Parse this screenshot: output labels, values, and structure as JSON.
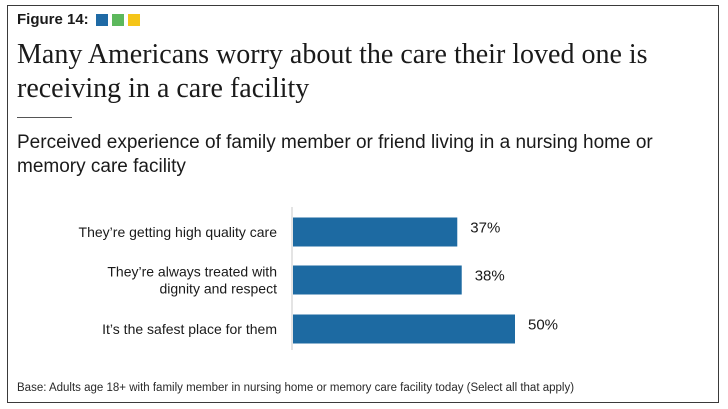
{
  "figure_label": "Figure 14:",
  "swatches": [
    "#1f6aa5",
    "#5cb85c",
    "#f5c518"
  ],
  "headline": "Many Americans worry about the care their loved one is receiving in a care facility",
  "chart_data": {
    "type": "bar",
    "orientation": "horizontal",
    "title": "Perceived experience of family member or friend living in a nursing home or memory care facility",
    "categories": [
      [
        "They’re getting high quality care"
      ],
      [
        "They’re always treated with",
        "dignity and respect"
      ],
      [
        "It’s the safest place for them"
      ]
    ],
    "values": [
      37,
      38,
      50
    ],
    "value_labels": [
      "37%",
      "38%",
      "50%"
    ],
    "bar_color": "#1d6aa2",
    "xlim": [
      0,
      100
    ],
    "grid": false,
    "legend": "none"
  },
  "base_note": "Base: Adults age 18+ with family member in nursing home or memory care facility today (Select all that apply)"
}
